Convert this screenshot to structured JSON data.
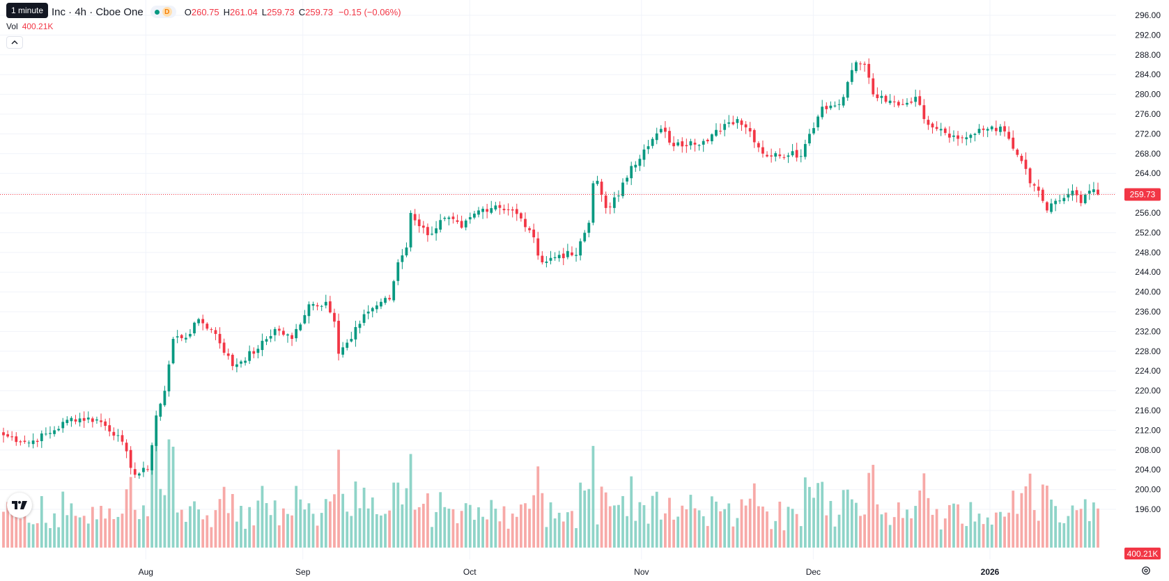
{
  "legend": {
    "symbol": "Inc · 4h · Cboe One",
    "status_badge": "D",
    "open_label": "O",
    "open": "260.75",
    "high_label": "H",
    "high": "261.04",
    "low_label": "L",
    "low": "259.73",
    "close_label": "C",
    "close": "259.73",
    "change": "−0.15 (−0.06%)",
    "tooltip": "1 minute",
    "vol_label": "Vol",
    "vol_value": "400.21K"
  },
  "price_axis": {
    "ticks": [
      "296.00",
      "292.00",
      "288.00",
      "284.00",
      "280.00",
      "276.00",
      "272.00",
      "268.00",
      "264.00",
      "260.00",
      "256.00",
      "252.00",
      "248.00",
      "244.00",
      "240.00",
      "236.00",
      "232.00",
      "228.00",
      "224.00",
      "220.00",
      "216.00",
      "212.00",
      "208.00",
      "204.00",
      "200.00",
      "196.00"
    ],
    "last_price": "259.73",
    "last_volume": "400.21K"
  },
  "time_axis": {
    "labels": [
      "Aug",
      "Sep",
      "Oct",
      "Nov",
      "Dec",
      "2026"
    ]
  },
  "colors": {
    "up": "#089981",
    "down": "#f23645",
    "up_volume": "#8fd4c8",
    "down_volume": "#f7a9a7",
    "grid": "#f0f3fa",
    "axis_text": "#131722"
  },
  "icons": {
    "logo": "tradingview-logo",
    "collapse": "chevron-up-icon",
    "settings": "gear-icon"
  },
  "chart_data": {
    "type": "candlestick",
    "symbol": "Inc · 4h · Cboe One",
    "timeframe": "4h",
    "ylim": [
      194,
      298
    ],
    "price_ticks": [
      296,
      292,
      288,
      284,
      280,
      276,
      272,
      268,
      264,
      260,
      256,
      252,
      248,
      244,
      240,
      236,
      232,
      228,
      224,
      220,
      216,
      212,
      208,
      204,
      200,
      196
    ],
    "x_labels": [
      "Aug",
      "Sep",
      "Oct",
      "Nov",
      "Dec",
      "2026"
    ],
    "last_price": 259.73,
    "anchors": [
      {
        "i": 0,
        "p": 211.0
      },
      {
        "i": 6,
        "p": 209.5
      },
      {
        "i": 12,
        "p": 212.0
      },
      {
        "i": 16,
        "p": 214.5
      },
      {
        "i": 22,
        "p": 214.2
      },
      {
        "i": 27,
        "p": 211.0
      },
      {
        "i": 31,
        "p": 203.0
      },
      {
        "i": 34,
        "p": 204.0
      },
      {
        "i": 36,
        "p": 215.0
      },
      {
        "i": 38,
        "p": 220.0
      },
      {
        "i": 40,
        "p": 230.5
      },
      {
        "i": 44,
        "p": 231.5
      },
      {
        "i": 46,
        "p": 234.5
      },
      {
        "i": 50,
        "p": 231.5
      },
      {
        "i": 54,
        "p": 225.0
      },
      {
        "i": 60,
        "p": 228.5
      },
      {
        "i": 64,
        "p": 232.5
      },
      {
        "i": 68,
        "p": 230.5
      },
      {
        "i": 72,
        "p": 237.5
      },
      {
        "i": 76,
        "p": 238.0
      },
      {
        "i": 78,
        "p": 234.0
      },
      {
        "i": 79,
        "p": 227.5
      },
      {
        "i": 82,
        "p": 230.5
      },
      {
        "i": 85,
        "p": 235.5
      },
      {
        "i": 89,
        "p": 238.0
      },
      {
        "i": 91,
        "p": 238.5
      },
      {
        "i": 93,
        "p": 246.0
      },
      {
        "i": 95,
        "p": 249.0
      },
      {
        "i": 96,
        "p": 256.0
      },
      {
        "i": 100,
        "p": 251.5
      },
      {
        "i": 104,
        "p": 255.0
      },
      {
        "i": 108,
        "p": 253.0
      },
      {
        "i": 112,
        "p": 256.5
      },
      {
        "i": 116,
        "p": 257.5
      },
      {
        "i": 120,
        "p": 256.5
      },
      {
        "i": 124,
        "p": 252.5
      },
      {
        "i": 127,
        "p": 246.0
      },
      {
        "i": 131,
        "p": 247.5
      },
      {
        "i": 135,
        "p": 247.5
      },
      {
        "i": 138,
        "p": 254.0
      },
      {
        "i": 139,
        "p": 262.0
      },
      {
        "i": 140,
        "p": 262.5
      },
      {
        "i": 142,
        "p": 257.0
      },
      {
        "i": 145,
        "p": 259.5
      },
      {
        "i": 148,
        "p": 265.5
      },
      {
        "i": 152,
        "p": 269.5
      },
      {
        "i": 155,
        "p": 273.0
      },
      {
        "i": 158,
        "p": 269.5
      },
      {
        "i": 162,
        "p": 270.5
      },
      {
        "i": 166,
        "p": 270.5
      },
      {
        "i": 170,
        "p": 274.0
      },
      {
        "i": 173,
        "p": 275.0
      },
      {
        "i": 176,
        "p": 272.5
      },
      {
        "i": 179,
        "p": 268.0
      },
      {
        "i": 183,
        "p": 267.5
      },
      {
        "i": 186,
        "p": 268.5
      },
      {
        "i": 188,
        "p": 267.5
      },
      {
        "i": 190,
        "p": 272.0
      },
      {
        "i": 193,
        "p": 277.5
      },
      {
        "i": 197,
        "p": 278.0
      },
      {
        "i": 199,
        "p": 282.5
      },
      {
        "i": 201,
        "p": 286.5
      },
      {
        "i": 203,
        "p": 286.0
      },
      {
        "i": 205,
        "p": 280.0
      },
      {
        "i": 208,
        "p": 278.5
      },
      {
        "i": 212,
        "p": 278.0
      },
      {
        "i": 215,
        "p": 279.5
      },
      {
        "i": 217,
        "p": 275.0
      },
      {
        "i": 221,
        "p": 273.0
      },
      {
        "i": 225,
        "p": 271.0
      },
      {
        "i": 229,
        "p": 272.0
      },
      {
        "i": 233,
        "p": 273.5
      },
      {
        "i": 236,
        "p": 272.5
      },
      {
        "i": 238,
        "p": 269.0
      },
      {
        "i": 240,
        "p": 266.5
      },
      {
        "i": 242,
        "p": 262.0
      },
      {
        "i": 244,
        "p": 260.5
      },
      {
        "i": 246,
        "p": 256.5
      },
      {
        "i": 249,
        "p": 258.5
      },
      {
        "i": 252,
        "p": 260.5
      },
      {
        "i": 254,
        "p": 258.0
      },
      {
        "i": 256,
        "p": 260.5
      },
      {
        "i": 258,
        "p": 259.73
      }
    ],
    "volume_range": [
      0,
      1200000
    ]
  }
}
